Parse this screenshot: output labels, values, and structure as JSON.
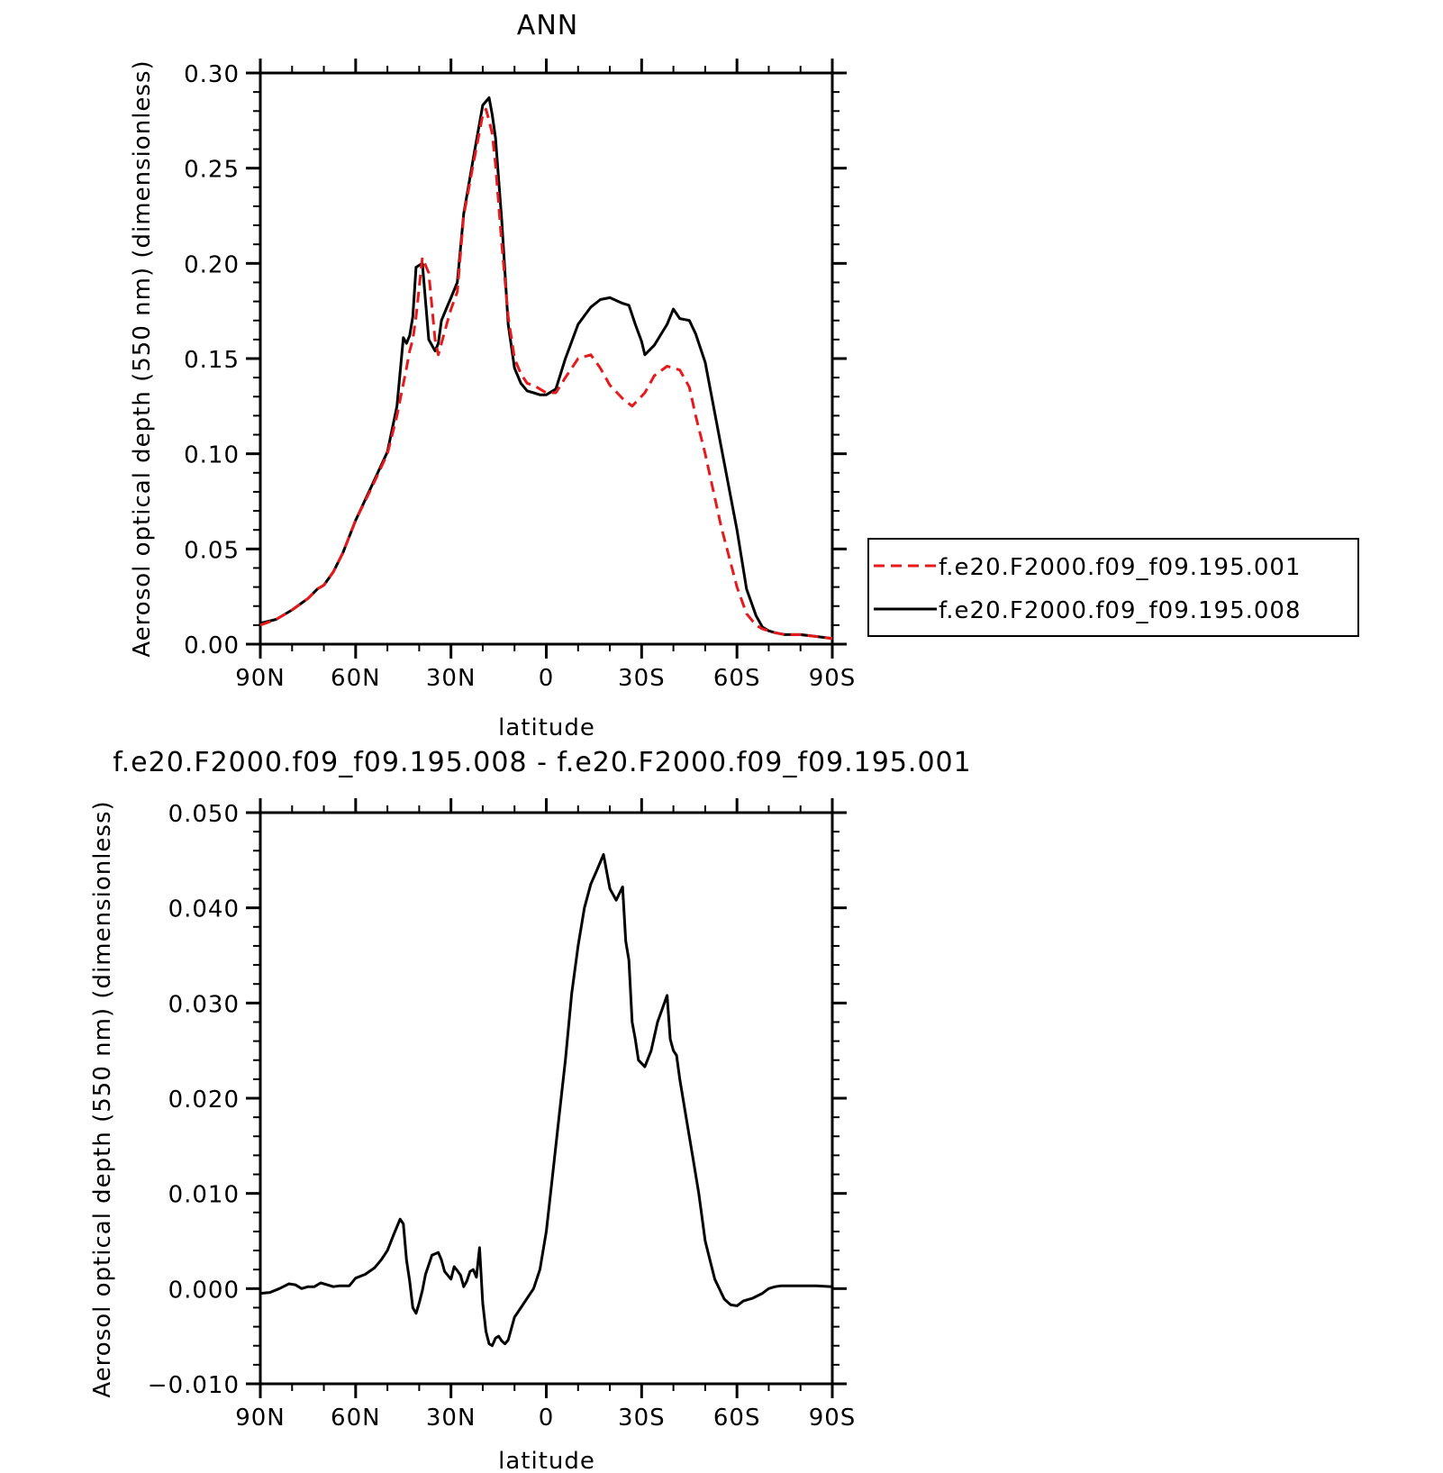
{
  "chart_data": [
    {
      "type": "line",
      "title": "ANN",
      "xlabel": "latitude",
      "ylabel": "Aerosol optical depth (550 nm) (dimensionless)",
      "xlim": [
        90,
        -90
      ],
      "ylim": [
        0.0,
        0.3
      ],
      "x_ticks": [
        90,
        60,
        30,
        0,
        -30,
        -60,
        -90
      ],
      "x_tick_labels": [
        "90N",
        "60N",
        "30N",
        "0",
        "30S",
        "60S",
        "90S"
      ],
      "y_ticks": [
        0.0,
        0.05,
        0.1,
        0.15,
        0.2,
        0.25,
        0.3
      ],
      "y_tick_labels": [
        "0.00",
        "0.05",
        "0.10",
        "0.15",
        "0.20",
        "0.25",
        "0.30"
      ],
      "legend_position": "right",
      "series": [
        {
          "name": "f.e20.F2000.f09_f09.195.001",
          "color": "#e8191a",
          "style": "dashed",
          "x": [
            90,
            85,
            80,
            75,
            72,
            70,
            67,
            64,
            60,
            55,
            50,
            47,
            44,
            43,
            42,
            41,
            39,
            37,
            35,
            34,
            33,
            31,
            30,
            28,
            26,
            23,
            20,
            19,
            18,
            17,
            16,
            14,
            12,
            10,
            8,
            6,
            4,
            2,
            0,
            -3,
            -6,
            -10,
            -14,
            -17,
            -20,
            -24,
            -27,
            -31,
            -34,
            -38,
            -42,
            -45,
            -47,
            -50,
            -55,
            -60,
            -63,
            -66,
            -68,
            -70,
            -72,
            -75,
            -80,
            -85,
            -90
          ],
          "y": [
            0.01,
            0.013,
            0.018,
            0.024,
            0.029,
            0.031,
            0.038,
            0.048,
            0.065,
            0.082,
            0.1,
            0.12,
            0.145,
            0.154,
            0.16,
            0.172,
            0.203,
            0.195,
            0.16,
            0.152,
            0.158,
            0.17,
            0.176,
            0.185,
            0.225,
            0.252,
            0.278,
            0.281,
            0.275,
            0.268,
            0.252,
            0.21,
            0.172,
            0.15,
            0.142,
            0.137,
            0.136,
            0.134,
            0.132,
            0.132,
            0.14,
            0.15,
            0.152,
            0.145,
            0.136,
            0.129,
            0.125,
            0.132,
            0.141,
            0.146,
            0.144,
            0.135,
            0.12,
            0.1,
            0.062,
            0.03,
            0.016,
            0.01,
            0.008,
            0.007,
            0.006,
            0.005,
            0.005,
            0.004,
            0.003
          ]
        },
        {
          "name": "f.e20.F2000.f09_f09.195.008",
          "color": "#000000",
          "style": "solid",
          "x": [
            90,
            85,
            80,
            75,
            72,
            70,
            67,
            64,
            60,
            55,
            50,
            47,
            45,
            44,
            43,
            42,
            41,
            39,
            37,
            35,
            34,
            33,
            31,
            30,
            28,
            26,
            23,
            20,
            18,
            17,
            16,
            14,
            12,
            10,
            8,
            6,
            4,
            2,
            0,
            -3,
            -6,
            -10,
            -14,
            -17,
            -20,
            -24,
            -26,
            -28,
            -30,
            -31,
            -34,
            -38,
            -40,
            -42,
            -45,
            -47,
            -50,
            -55,
            -60,
            -63,
            -66,
            -68,
            -70,
            -72,
            -75,
            -80,
            -85,
            -90
          ],
          "y": [
            0.011,
            0.013,
            0.018,
            0.024,
            0.029,
            0.031,
            0.038,
            0.048,
            0.065,
            0.083,
            0.101,
            0.125,
            0.161,
            0.158,
            0.162,
            0.172,
            0.198,
            0.2,
            0.16,
            0.154,
            0.158,
            0.17,
            0.178,
            0.182,
            0.19,
            0.226,
            0.255,
            0.283,
            0.287,
            0.278,
            0.266,
            0.222,
            0.168,
            0.145,
            0.137,
            0.133,
            0.132,
            0.131,
            0.131,
            0.134,
            0.15,
            0.168,
            0.177,
            0.181,
            0.182,
            0.179,
            0.178,
            0.168,
            0.159,
            0.152,
            0.157,
            0.168,
            0.176,
            0.171,
            0.17,
            0.163,
            0.148,
            0.104,
            0.06,
            0.029,
            0.015,
            0.009,
            0.007,
            0.006,
            0.005,
            0.005,
            0.004,
            0.003
          ]
        }
      ]
    },
    {
      "type": "line",
      "title": "f.e20.F2000.f09_f09.195.008 - f.e20.F2000.f09_f09.195.001",
      "xlabel": "latitude",
      "ylabel": "Aerosol optical depth (550 nm) (dimensionless)",
      "xlim": [
        90,
        -90
      ],
      "ylim": [
        -0.01,
        0.05
      ],
      "x_ticks": [
        90,
        60,
        30,
        0,
        -30,
        -60,
        -90
      ],
      "x_tick_labels": [
        "90N",
        "60N",
        "30N",
        "0",
        "30S",
        "60S",
        "90S"
      ],
      "y_ticks": [
        -0.01,
        0.0,
        0.01,
        0.02,
        0.03,
        0.04,
        0.05
      ],
      "y_tick_labels": [
        "−0.010",
        "0.000",
        "0.010",
        "0.020",
        "0.030",
        "0.040",
        "0.050"
      ],
      "series": [
        {
          "color": "#000000",
          "style": "solid",
          "x": [
            90,
            87,
            84,
            81,
            79,
            77,
            75,
            73,
            71,
            69,
            67,
            65,
            62,
            60,
            57,
            54,
            52,
            50,
            48,
            46,
            45,
            44,
            43,
            42,
            41,
            40,
            39,
            38,
            37,
            36,
            34,
            33,
            32,
            30,
            29,
            28,
            27,
            26,
            25,
            24,
            23,
            22,
            21,
            20,
            19,
            18,
            17,
            16,
            15,
            14,
            13,
            12,
            10,
            8,
            6,
            4,
            2,
            0,
            -2,
            -4,
            -6,
            -8,
            -10,
            -12,
            -14,
            -16,
            -18,
            -20,
            -22,
            -24,
            -25,
            -26,
            -27,
            -28,
            -29,
            -31,
            -33,
            -35,
            -38,
            -39,
            -40,
            -41,
            -42,
            -43,
            -44,
            -46,
            -48,
            -50,
            -53,
            -56,
            -58,
            -60,
            -62,
            -65,
            -68,
            -70,
            -72,
            -74,
            -77,
            -80,
            -85,
            -90
          ],
          "y": [
            -0.0005,
            -0.0004,
            0.0,
            0.0005,
            0.0004,
            0.0,
            0.0002,
            0.0002,
            0.0006,
            0.0004,
            0.0002,
            0.0003,
            0.0003,
            0.0011,
            0.0015,
            0.0022,
            0.003,
            0.004,
            0.0057,
            0.0073,
            0.0068,
            0.003,
            0.0008,
            -0.002,
            -0.0026,
            -0.0015,
            -0.0002,
            0.0015,
            0.0025,
            0.0035,
            0.0038,
            0.003,
            0.0018,
            0.001,
            0.0023,
            0.0019,
            0.0014,
            0.0002,
            0.0008,
            0.0018,
            0.002,
            0.0012,
            0.0043,
            -0.0015,
            -0.0045,
            -0.0058,
            -0.006,
            -0.0052,
            -0.005,
            -0.0055,
            -0.0058,
            -0.0054,
            -0.003,
            -0.002,
            -0.001,
            0.0,
            0.002,
            0.006,
            0.012,
            0.018,
            0.024,
            0.031,
            0.036,
            0.04,
            0.0425,
            0.044,
            0.0456,
            0.042,
            0.0408,
            0.0422,
            0.0365,
            0.0345,
            0.028,
            0.0262,
            0.024,
            0.0233,
            0.025,
            0.028,
            0.0308,
            0.0262,
            0.025,
            0.0245,
            0.022,
            0.02,
            0.018,
            0.014,
            0.01,
            0.005,
            0.001,
            -0.0011,
            -0.0017,
            -0.0018,
            -0.0013,
            -0.001,
            -0.0005,
            0.0,
            0.0002,
            0.0003,
            0.0003,
            0.0003,
            0.0003,
            0.0002
          ]
        }
      ]
    }
  ],
  "legend": {
    "entries": [
      {
        "label": "f.e20.F2000.f09_f09.195.001",
        "color": "#e8191a",
        "style": "dashed"
      },
      {
        "label": "f.e20.F2000.f09_f09.195.008",
        "color": "#000000",
        "style": "solid"
      }
    ]
  }
}
